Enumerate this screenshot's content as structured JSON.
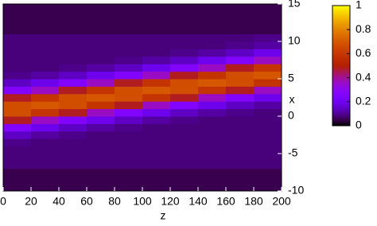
{
  "chart_data": {
    "type": "heatmap",
    "x_label": "z",
    "y_label": "x",
    "z": [
      10,
      30,
      50,
      70,
      90,
      110,
      130,
      150,
      170,
      190
    ],
    "x": [
      -9.5,
      -8.5,
      -7.5,
      -6.5,
      -5.5,
      -4.5,
      -3.5,
      -2.5,
      -1.5,
      -0.5,
      0.5,
      1.5,
      2.5,
      3.5,
      4.5,
      5.5,
      6.5,
      7.5,
      8.5,
      9.5,
      10.5,
      11.5,
      12.5,
      13.5,
      14.5
    ],
    "values": [
      [
        0.05,
        0.05,
        0.05,
        0.05,
        0.05,
        0.05,
        0.05,
        0.05,
        0.05,
        0.05
      ],
      [
        0.05,
        0.05,
        0.05,
        0.05,
        0.05,
        0.05,
        0.05,
        0.05,
        0.05,
        0.05
      ],
      [
        0.05,
        0.05,
        0.05,
        0.05,
        0.05,
        0.05,
        0.05,
        0.05,
        0.05,
        0.05
      ],
      [
        0.08,
        0.08,
        0.08,
        0.08,
        0.08,
        0.08,
        0.08,
        0.08,
        0.08,
        0.08
      ],
      [
        0.08,
        0.08,
        0.08,
        0.08,
        0.08,
        0.08,
        0.08,
        0.08,
        0.08,
        0.08
      ],
      [
        0.08,
        0.08,
        0.08,
        0.08,
        0.08,
        0.08,
        0.08,
        0.08,
        0.08,
        0.08
      ],
      [
        0.09,
        0.08,
        0.08,
        0.08,
        0.08,
        0.08,
        0.08,
        0.08,
        0.08,
        0.08
      ],
      [
        0.14,
        0.11,
        0.09,
        0.08,
        0.08,
        0.08,
        0.08,
        0.08,
        0.08,
        0.08
      ],
      [
        0.26,
        0.19,
        0.14,
        0.11,
        0.09,
        0.08,
        0.08,
        0.08,
        0.08,
        0.08
      ],
      [
        0.48,
        0.36,
        0.26,
        0.19,
        0.14,
        0.11,
        0.09,
        0.08,
        0.08,
        0.08
      ],
      [
        0.67,
        0.59,
        0.48,
        0.36,
        0.26,
        0.19,
        0.14,
        0.11,
        0.09,
        0.08
      ],
      [
        0.67,
        0.7,
        0.67,
        0.59,
        0.48,
        0.36,
        0.26,
        0.19,
        0.14,
        0.11
      ],
      [
        0.48,
        0.59,
        0.67,
        0.7,
        0.67,
        0.59,
        0.48,
        0.36,
        0.26,
        0.19
      ],
      [
        0.26,
        0.36,
        0.48,
        0.59,
        0.67,
        0.7,
        0.67,
        0.59,
        0.48,
        0.36
      ],
      [
        0.14,
        0.19,
        0.26,
        0.36,
        0.48,
        0.59,
        0.67,
        0.7,
        0.67,
        0.59
      ],
      [
        0.09,
        0.11,
        0.14,
        0.19,
        0.26,
        0.36,
        0.48,
        0.59,
        0.67,
        0.7
      ],
      [
        0.08,
        0.08,
        0.09,
        0.11,
        0.14,
        0.19,
        0.26,
        0.36,
        0.48,
        0.59
      ],
      [
        0.08,
        0.08,
        0.08,
        0.08,
        0.09,
        0.11,
        0.14,
        0.19,
        0.26,
        0.36
      ],
      [
        0.08,
        0.08,
        0.08,
        0.08,
        0.08,
        0.08,
        0.09,
        0.11,
        0.14,
        0.19
      ],
      [
        0.08,
        0.08,
        0.08,
        0.08,
        0.08,
        0.08,
        0.08,
        0.08,
        0.09,
        0.11
      ],
      [
        0.08,
        0.08,
        0.08,
        0.08,
        0.08,
        0.08,
        0.08,
        0.08,
        0.08,
        0.09
      ],
      [
        0.05,
        0.05,
        0.05,
        0.05,
        0.05,
        0.05,
        0.05,
        0.05,
        0.05,
        0.05
      ],
      [
        0.05,
        0.05,
        0.05,
        0.05,
        0.05,
        0.05,
        0.05,
        0.05,
        0.05,
        0.05
      ],
      [
        0.05,
        0.05,
        0.05,
        0.05,
        0.05,
        0.05,
        0.05,
        0.05,
        0.05,
        0.05
      ],
      [
        0.05,
        0.05,
        0.05,
        0.05,
        0.05,
        0.05,
        0.05,
        0.05,
        0.05,
        0.05
      ]
    ],
    "xlim": [
      0,
      200
    ],
    "xticks": [
      0,
      20,
      40,
      60,
      80,
      100,
      120,
      140,
      160,
      180,
      200
    ],
    "ylim": [
      -10,
      15
    ],
    "yticks": [
      -10,
      -5,
      0,
      5,
      10,
      15
    ],
    "colorbar": {
      "lim": [
        0,
        1
      ],
      "ticks": [
        0,
        0.2,
        0.4,
        0.6,
        0.8,
        1
      ]
    }
  }
}
